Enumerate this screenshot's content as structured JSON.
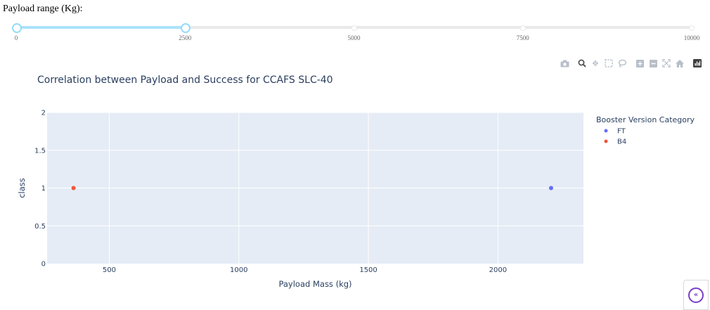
{
  "filter": {
    "label": "Payload range (Kg):",
    "min": 0,
    "max": 10000,
    "range": [
      0,
      2500
    ],
    "marks": [
      "0",
      "2500",
      "5000",
      "7500",
      "10000"
    ]
  },
  "modebar": {
    "icons": [
      "camera-icon",
      "zoom-icon",
      "pan-icon",
      "box-select-icon",
      "lasso-icon",
      "zoom-in-icon",
      "zoom-out-icon",
      "autoscale-icon",
      "reset-axes-icon",
      "plotly-logo-icon"
    ]
  },
  "colors": {
    "plot_bg": "#e5ecf6",
    "grid": "#ffffff",
    "FT": "#636efa",
    "B4": "#ef553b",
    "slider_track": "#abe2fb",
    "slider_handle": "#96dbfa",
    "accent": "#7a3ec8"
  },
  "chart_data": {
    "type": "scatter",
    "title": "Correlation between Payload and Success for CCAFS SLC-40",
    "xlabel": "Payload Mass (kg)",
    "ylabel": "class",
    "xlim": [
      260,
      2330
    ],
    "ylim": [
      0,
      2
    ],
    "x_ticks": [
      "500",
      "1000",
      "1500",
      "2000"
    ],
    "x_tick_values": [
      500,
      1000,
      1500,
      2000
    ],
    "y_ticks": [
      "0",
      "0.5",
      "1",
      "1.5",
      "2"
    ],
    "y_tick_values": [
      0,
      0.5,
      1,
      1.5,
      2
    ],
    "grid": true,
    "legend_title": "Booster Version Category",
    "legend_position": "right",
    "series": [
      {
        "name": "FT",
        "color": "#636efa",
        "points": [
          {
            "x": 2205,
            "y": 1
          }
        ]
      },
      {
        "name": "B4",
        "color": "#ef553b",
        "points": [
          {
            "x": 362,
            "y": 1
          }
        ]
      }
    ]
  }
}
